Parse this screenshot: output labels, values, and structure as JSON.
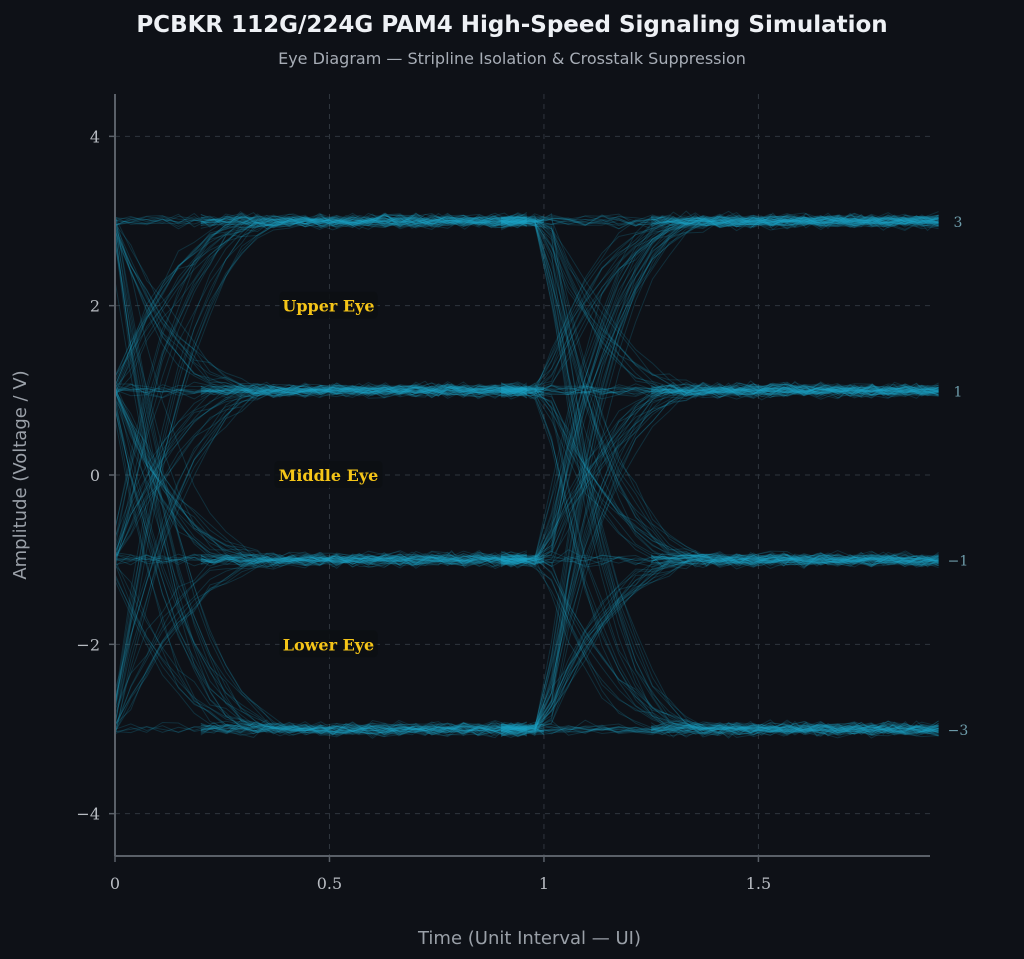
{
  "header": {
    "title": "PCBKR 112G/224G PAM4 High-Speed Signaling Simulation",
    "subtitle": "Eye Diagram — Stripline Isolation & Crosstalk Suppression"
  },
  "chart_data": {
    "type": "line",
    "title": "PCBKR 112G/224G PAM4 High-Speed Signaling Simulation",
    "subtitle": "Eye Diagram — Stripline Isolation & Crosstalk Suppression",
    "xlabel": "Time (Unit Interval — UI)",
    "ylabel": "Amplitude (Voltage / V)",
    "xlim": [
      0,
      1.9
    ],
    "ylim": [
      -4.5,
      4.5
    ],
    "xticks": [
      0,
      0.5,
      1,
      1.5
    ],
    "xtick_labels": [
      "0",
      "0.5",
      "1",
      "1.5"
    ],
    "yticks": [
      4,
      2,
      0,
      -2,
      -4
    ],
    "ytick_labels": [
      "4",
      "2",
      "0",
      "−2",
      "−4"
    ],
    "grid": true,
    "pam4_levels": [
      3,
      1,
      -1,
      -3
    ],
    "level_labels": [
      "3",
      "1",
      "−1",
      "−3"
    ],
    "transitions_ui": [
      0,
      1
    ],
    "annotations": [
      {
        "text": "Upper Eye",
        "x": 0.5,
        "y": 2
      },
      {
        "text": "Middle Eye",
        "x": 0.5,
        "y": 0
      },
      {
        "text": "Lower Eye",
        "x": 0.5,
        "y": -2
      }
    ],
    "colors": {
      "trace": "#1fa6c9",
      "annotation_text": "#f5c518",
      "axis": "#5a6068",
      "grid": "#2f353d",
      "tick_text": "#b8bcc2"
    }
  }
}
